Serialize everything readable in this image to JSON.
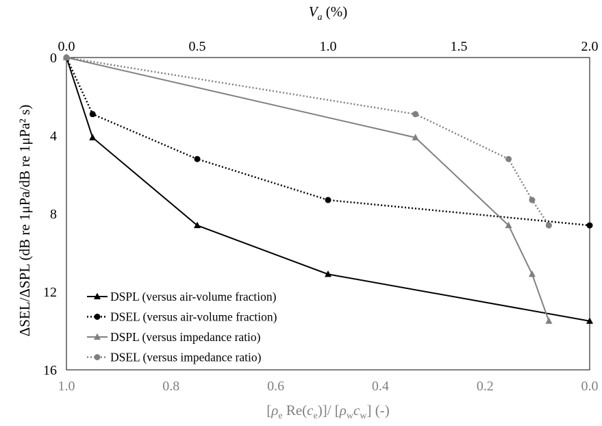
{
  "chart_data": {
    "type": "line",
    "title": "",
    "top_axis": {
      "label_main": "V",
      "label_sub": "a",
      "label_rest": " (%)",
      "ticks": [
        "0.0",
        "0.5",
        "1.0",
        "1.5",
        "2.0"
      ],
      "range": [
        0,
        2
      ]
    },
    "bottom_axis": {
      "label_parts": [
        "[",
        "ρ",
        "e",
        " Re(",
        "c",
        "e",
        ")]/ [",
        "ρ",
        "w",
        "c",
        "w",
        "] (-)"
      ],
      "ticks": [
        "1.0",
        "0.8",
        "0.6",
        "0.4",
        "0.2",
        "0.0"
      ],
      "range": [
        1,
        0
      ],
      "color": "#808080"
    },
    "y_axis": {
      "label": "ΔSEL/ΔSPL (dB re 1μPa/dB re 1μPa² s)",
      "ticks": [
        "0",
        "4",
        "8",
        "12",
        "16"
      ],
      "range": [
        0,
        16
      ],
      "inverted": true
    },
    "legend_position": "bottom-left",
    "series": [
      {
        "name": "DSPL (versus air-volume fraction)",
        "axis": "top",
        "color": "#000000",
        "dash": "solid",
        "marker": "triangle",
        "points": [
          [
            0,
            0
          ],
          [
            0.1,
            4.1
          ],
          [
            0.5,
            8.6
          ],
          [
            1.0,
            11.1
          ],
          [
            2.0,
            13.5
          ]
        ]
      },
      {
        "name": "DSEL (versus air-volume fraction)",
        "axis": "top",
        "color": "#000000",
        "dash": "dotted",
        "marker": "circle",
        "points": [
          [
            0,
            0
          ],
          [
            0.1,
            2.9
          ],
          [
            0.5,
            5.2
          ],
          [
            1.0,
            7.3
          ],
          [
            2.0,
            8.6
          ]
        ]
      },
      {
        "name": "DSPL (versus impedance ratio)",
        "axis": "bottom",
        "color": "#808080",
        "dash": "solid",
        "marker": "triangle",
        "points": [
          [
            1.0,
            0
          ],
          [
            0.333,
            4.1
          ],
          [
            0.155,
            8.6
          ],
          [
            0.11,
            11.1
          ],
          [
            0.078,
            13.5
          ]
        ]
      },
      {
        "name": "DSEL (versus impedance ratio)",
        "axis": "bottom",
        "color": "#808080",
        "dash": "dotted",
        "marker": "circle",
        "points": [
          [
            1.0,
            0
          ],
          [
            0.333,
            2.9
          ],
          [
            0.155,
            5.2
          ],
          [
            0.11,
            7.3
          ],
          [
            0.078,
            8.6
          ]
        ]
      }
    ]
  }
}
